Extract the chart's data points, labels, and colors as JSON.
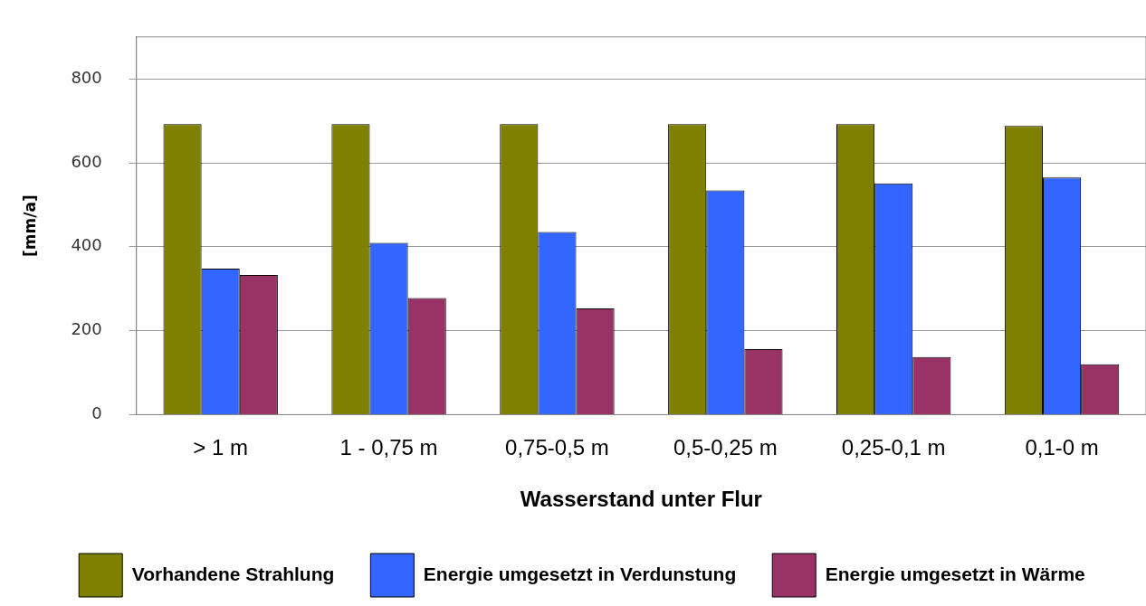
{
  "chart_data": {
    "type": "bar",
    "xlabel": "Wasserstand unter Flur",
    "ylabel": "[mm/a]",
    "categories": [
      "> 1 m",
      "1 - 0,75 m",
      "0,75-0,5 m",
      "0,5-0,25 m",
      "0,25-0,1 m",
      "0,1-0 m"
    ],
    "series": [
      {
        "name": "Vorhandene Strahlung",
        "color": "#808000",
        "values": [
          692,
          692,
          692,
          692,
          692,
          688
        ]
      },
      {
        "name": "Energie umgesetzt in Verdunstung",
        "color": "#3366ff",
        "values": [
          348,
          409,
          435,
          534,
          551,
          565
        ]
      },
      {
        "name": "Energie umgesetzt in Wärme",
        "color": "#993366",
        "values": [
          333,
          278,
          253,
          156,
          137,
          120
        ]
      }
    ],
    "ylim": [
      0,
      900
    ],
    "yticks": [
      0,
      200,
      400,
      600,
      800
    ],
    "grid": "y",
    "legend": "bottom"
  }
}
